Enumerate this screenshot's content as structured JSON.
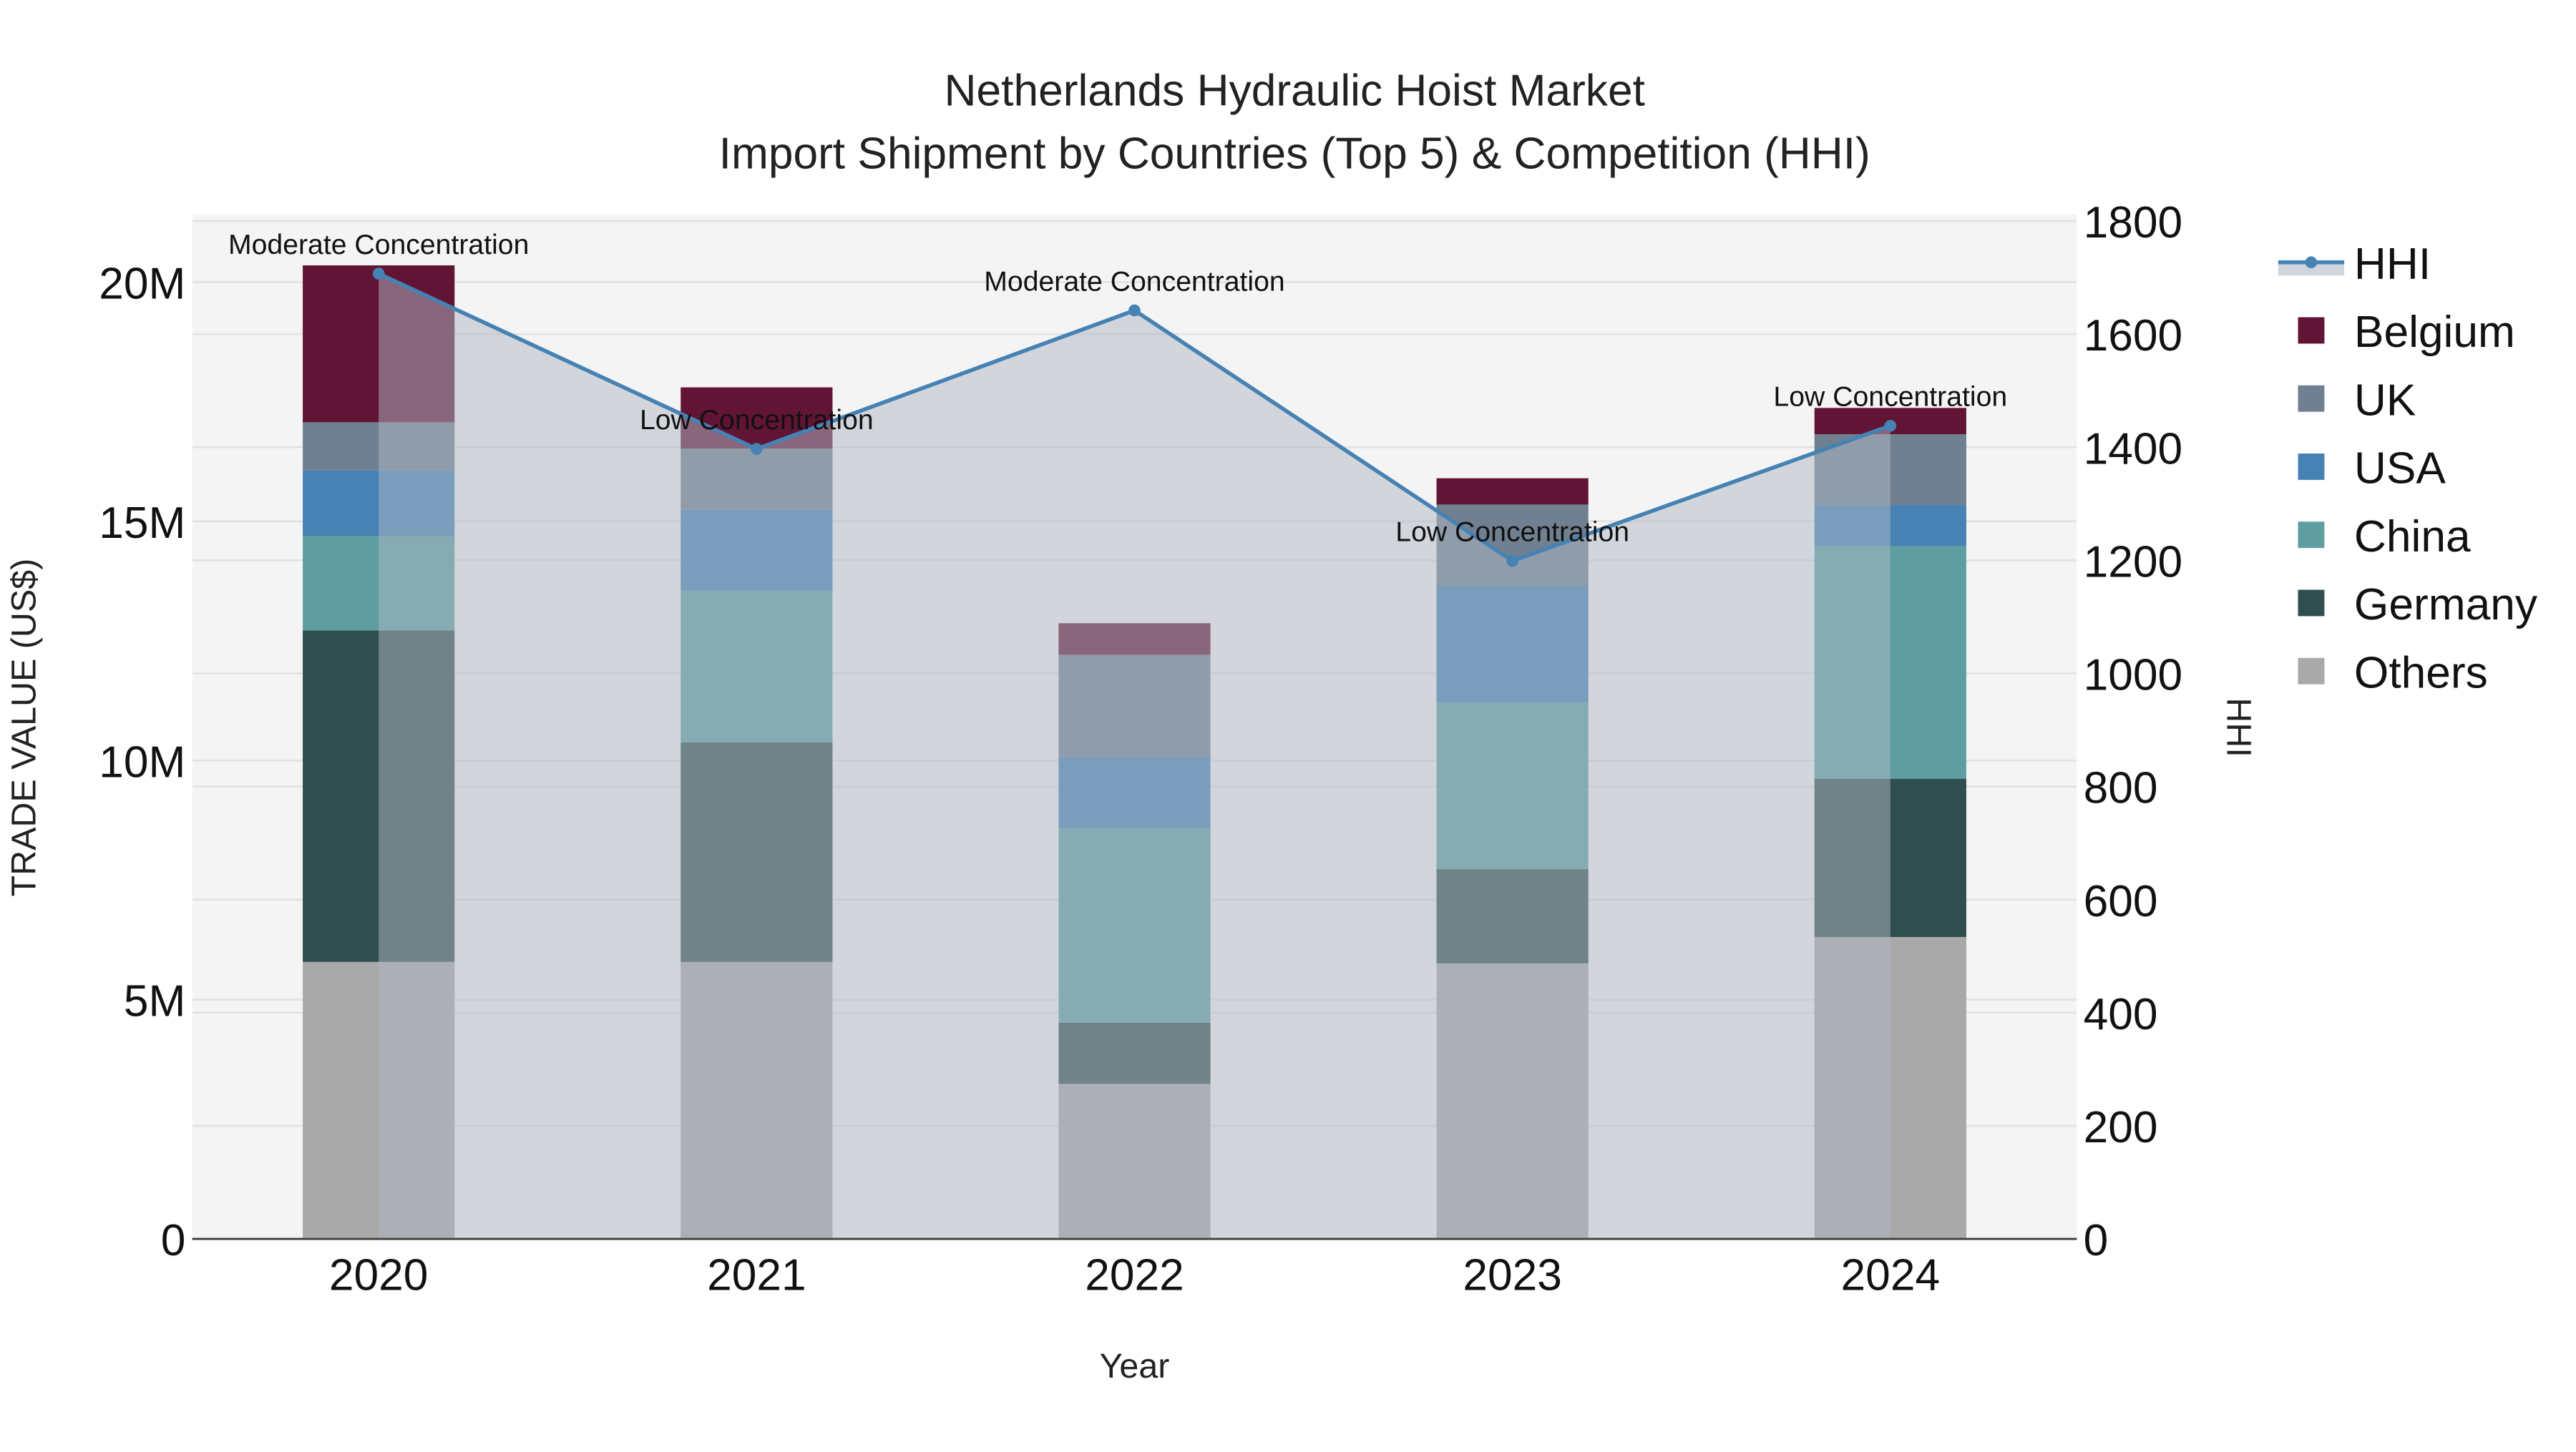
{
  "chart_data": {
    "type": "bar",
    "subtype": "stacked-bar-with-line-overlay",
    "title": "Netherlands Hydraulic Hoist Market",
    "subtitle": "Import Shipment by Countries (Top 5) & Competition (HHI)",
    "xlabel": "Year",
    "ylabel": "TRADE VALUE (US$)",
    "y2label": "HHI",
    "categories": [
      "2020",
      "2021",
      "2022",
      "2023",
      "2024"
    ],
    "ylim": [
      0,
      21.4
    ],
    "y2lim": [
      0,
      1810
    ],
    "yticks": [
      0,
      5,
      10,
      15,
      20
    ],
    "ytick_labels": [
      "0",
      "5M",
      "10M",
      "15M",
      "20M"
    ],
    "y2ticks": [
      0,
      200,
      400,
      600,
      800,
      1000,
      1200,
      1400,
      1600,
      1800
    ],
    "y2tick_labels": [
      "0",
      "200",
      "400",
      "600",
      "800",
      "1000",
      "1200",
      "1400",
      "1600",
      "1800"
    ],
    "units": "US$ millions",
    "series": [
      {
        "name": "Others",
        "color": "#a9a9a9",
        "values": [
          5.79,
          5.79,
          3.24,
          5.76,
          6.31
        ]
      },
      {
        "name": "Germany",
        "color": "#2f4f4f",
        "values": [
          6.93,
          4.59,
          1.28,
          1.97,
          3.31
        ]
      },
      {
        "name": "China",
        "color": "#5f9ea0",
        "values": [
          1.97,
          3.17,
          4.07,
          3.48,
          4.86
        ]
      },
      {
        "name": "USA",
        "color": "#4682b4",
        "values": [
          1.38,
          1.69,
          1.48,
          2.45,
          0.86
        ]
      },
      {
        "name": "UK",
        "color": "#708090",
        "values": [
          1.0,
          1.28,
          2.14,
          1.69,
          1.48
        ]
      },
      {
        "name": "Belgium",
        "color": "#621435",
        "values": [
          3.28,
          1.28,
          0.66,
          0.55,
          0.55
        ]
      }
    ],
    "line": {
      "name": "HHI",
      "color": "#4682b4",
      "fill_color": "#b0b8c4",
      "values": [
        1707,
        1397,
        1642,
        1199,
        1438
      ],
      "annotations": [
        "Moderate Concentration",
        "Low Concentration",
        "Moderate Concentration",
        "Low Concentration",
        "Low Concentration"
      ]
    },
    "legend": {
      "position": "right",
      "entries": [
        "HHI",
        "Belgium",
        "UK",
        "USA",
        "China",
        "Germany",
        "Others"
      ]
    },
    "grid": true,
    "plot_bgcolor": "#f4f4f4"
  }
}
